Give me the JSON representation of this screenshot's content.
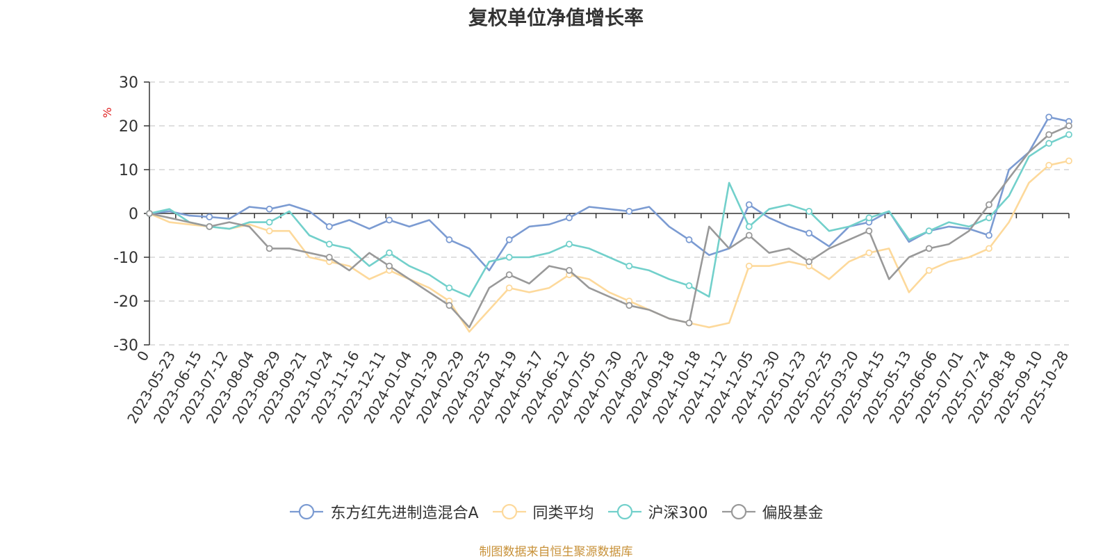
{
  "chart_data": {
    "type": "line",
    "title": "复权单位净值增长率",
    "ylabel": "%",
    "ylim": [
      -30,
      30
    ],
    "yticks": [
      30,
      20,
      10,
      0,
      -10,
      -20,
      -30
    ],
    "grid": true,
    "legend_position": "bottom",
    "x_tick_labels": [
      "0",
      "2023-05-23",
      "2023-06-15",
      "2023-07-12",
      "2023-08-04",
      "2023-08-29",
      "2023-09-21",
      "2023-10-24",
      "2023-11-16",
      "2023-12-11",
      "2024-01-04",
      "2024-01-29",
      "2024-02-29",
      "2024-03-25",
      "2024-04-19",
      "2024-05-17",
      "2024-06-12",
      "2024-07-05",
      "2024-07-30",
      "2024-08-22",
      "2024-09-18",
      "2024-10-18",
      "2024-11-12",
      "2024-12-05",
      "2024-12-30",
      "2025-01-23",
      "2025-02-25",
      "2025-03-20",
      "2025-04-15",
      "2025-05-13",
      "2025-06-06",
      "2025-07-01",
      "2025-07-24",
      "2025-08-18",
      "2025-09-10",
      "2025-10-28"
    ],
    "series": [
      {
        "name": "东方红先进制造混合A",
        "color": "#7b9bd2",
        "values": [
          0,
          0.5,
          -0.5,
          -0.8,
          -1.2,
          1.5,
          1.0,
          2.0,
          0.5,
          -3.0,
          -1.5,
          -3.5,
          -1.5,
          -3.0,
          -1.5,
          -6.0,
          -8.0,
          -13.0,
          -6.0,
          -3.0,
          -2.5,
          -1.0,
          1.5,
          1.0,
          0.5,
          1.5,
          -3.0,
          -6.0,
          -9.5,
          -8.0,
          2.0,
          -1.0,
          -3.0,
          -4.5,
          -7.5,
          -3.0,
          -2.0,
          0.5,
          -6.5,
          -4.0,
          -3.0,
          -3.5,
          -5.0,
          10.0,
          14.0,
          22.0,
          21.0
        ]
      },
      {
        "name": "同类平均",
        "color": "#fdd99b",
        "values": [
          0,
          -2.0,
          -2.5,
          -3.0,
          -3.5,
          -2.5,
          -4.0,
          -4.0,
          -10.0,
          -11.0,
          -12.0,
          -15.0,
          -13.0,
          -15.0,
          -17.0,
          -20.0,
          -27.0,
          -22.0,
          -17.0,
          -18.0,
          -17.0,
          -14.0,
          -15.0,
          -18.0,
          -20.0,
          -22.0,
          -24.0,
          -25.0,
          -26.0,
          -25.0,
          -12.0,
          -12.0,
          -11.0,
          -12.0,
          -15.0,
          -11.0,
          -9.0,
          -8.0,
          -18.0,
          -13.0,
          -11.0,
          -10.0,
          -8.0,
          -2.0,
          7.0,
          11.0,
          12.0
        ]
      },
      {
        "name": "沪深300",
        "color": "#72d0cb",
        "values": [
          0,
          1.0,
          -2.0,
          -3.0,
          -3.5,
          -2.0,
          -2.0,
          0.5,
          -5.0,
          -7.0,
          -8.0,
          -12.0,
          -9.0,
          -12.0,
          -14.0,
          -17.0,
          -19.0,
          -11.0,
          -10.0,
          -10.0,
          -9.0,
          -7.0,
          -8.0,
          -10.0,
          -12.0,
          -13.0,
          -15.0,
          -16.5,
          -19.0,
          7.0,
          -3.0,
          1.0,
          2.0,
          0.5,
          -4.0,
          -3.0,
          -1.0,
          0.5,
          -6.0,
          -4.0,
          -2.0,
          -3.0,
          -1.0,
          4.0,
          13.0,
          16.0,
          18.0
        ]
      },
      {
        "name": "偏股基金",
        "color": "#999999",
        "values": [
          0,
          -1.0,
          -2.0,
          -3.0,
          -2.0,
          -3.0,
          -8.0,
          -8.0,
          -9.0,
          -10.0,
          -13.0,
          -9.0,
          -12.0,
          -15.0,
          -18.0,
          -21.0,
          -26.0,
          -17.0,
          -14.0,
          -16.0,
          -12.0,
          -13.0,
          -17.0,
          -19.0,
          -21.0,
          -22.0,
          -24.0,
          -25.0,
          -3.0,
          -8.0,
          -5.0,
          -9.0,
          -8.0,
          -11.0,
          -8.0,
          -6.0,
          -4.0,
          -15.0,
          -10.0,
          -8.0,
          -7.0,
          -4.0,
          2.0,
          8.0,
          14.0,
          18.0,
          20.0
        ]
      }
    ]
  },
  "footnote": "制图数据来自恒生聚源数据库"
}
